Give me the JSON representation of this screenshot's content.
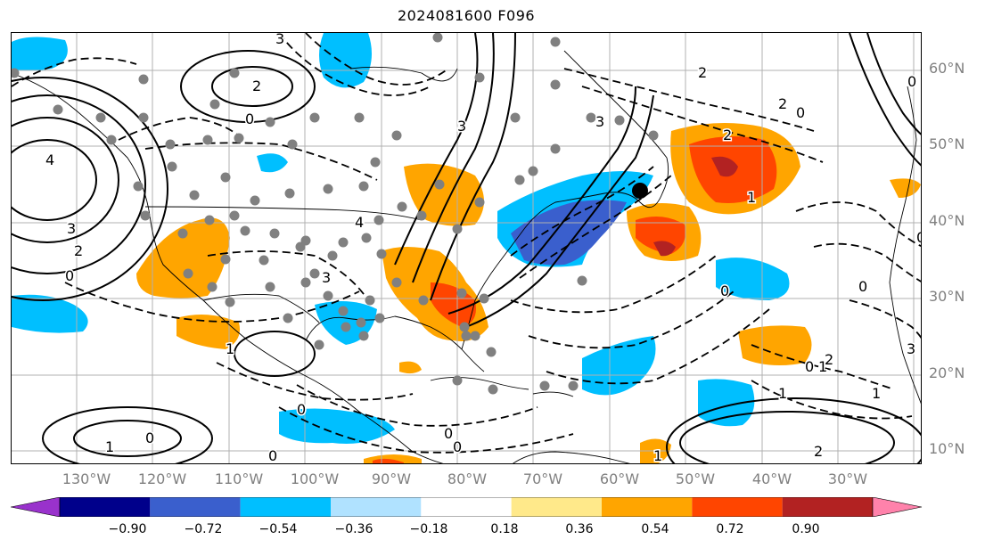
{
  "title": "2024081600 F096",
  "lat_labels": [
    "60°N",
    "50°N",
    "40°N",
    "30°N",
    "20°N",
    "10°N"
  ],
  "lon_labels": [
    "130°W",
    "120°W",
    "110°W",
    "100°W",
    "90°W",
    "80°W",
    "70°W",
    "60°W",
    "50°W",
    "40°W",
    "30°W"
  ],
  "colorbar": {
    "ticks": [
      "−0.90",
      "−0.72",
      "−0.54",
      "−0.36",
      "−0.18",
      "0.18",
      "0.36",
      "0.54",
      "0.72",
      "0.90"
    ],
    "colors": [
      "#9932cc",
      "#00008b",
      "#3a5fcd",
      "#00bfff",
      "#b0e2ff",
      "#ffffff",
      "#ffe98a",
      "#ffa500",
      "#ff4500",
      "#b22222",
      "#ff82ab"
    ]
  },
  "contour_labels": [
    "3",
    "2",
    "0",
    "4",
    "3",
    "2",
    "0",
    "1",
    "3",
    "4",
    "3",
    "3",
    "0",
    "2",
    "2",
    "1",
    "0",
    "1",
    "2",
    "0",
    "2",
    "1",
    "0",
    "1",
    "0",
    "0",
    "3",
    "0",
    "1",
    "0",
    "0",
    "1",
    "2",
    "1",
    "0",
    "0"
  ],
  "colors": {
    "dots": "#808080",
    "marker": "#000000",
    "grid": "#b0b0b0",
    "axis_text": "#808080"
  }
}
